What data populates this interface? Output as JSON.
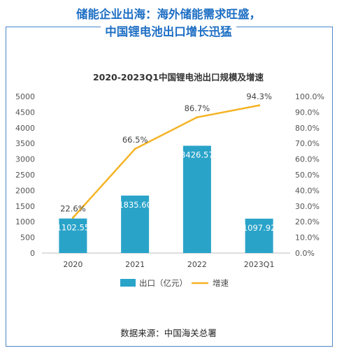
{
  "header": {
    "line1": "储能企业出海：海外储能需求旺盛，",
    "line2": "中国锂电池出口增长迅猛"
  },
  "source": "数据来源：中国海关总署",
  "colors": {
    "bar": "#2aa3c9",
    "line": "#f5b324",
    "accent": "#1e6fc4",
    "frame": "#4a86c8"
  },
  "chart_data": {
    "type": "bar",
    "title": "2020-2023Q1中国锂电池出口规模及增速",
    "categories": [
      "2020",
      "2021",
      "2022",
      "2023Q1"
    ],
    "series": [
      {
        "name": "出口（亿元）",
        "type": "bar",
        "axis": "left",
        "values": [
          1102.55,
          1835.6,
          3426.57,
          1097.92
        ],
        "labels": [
          "1102.55",
          "1835.60",
          "3426.57",
          "1097.92"
        ]
      },
      {
        "name": "增速",
        "type": "line",
        "axis": "right",
        "values": [
          22.6,
          66.5,
          86.7,
          94.3
        ],
        "labels": [
          "22.6%",
          "66.5%",
          "86.7%",
          "94.3%"
        ]
      }
    ],
    "y_left": {
      "min": 0,
      "max": 5000,
      "step": 500,
      "ticks": [
        "0",
        "500",
        "1000",
        "1500",
        "2000",
        "2500",
        "3000",
        "3500",
        "4000",
        "4500",
        "5000"
      ]
    },
    "y_right": {
      "min": 0,
      "max": 100,
      "step": 10,
      "ticks": [
        "0.0%",
        "10.0%",
        "20.0%",
        "30.0%",
        "40.0%",
        "50.0%",
        "60.0%",
        "70.0%",
        "80.0%",
        "90.0%",
        "100.0%"
      ]
    },
    "grid": false,
    "legend_position": "bottom"
  }
}
